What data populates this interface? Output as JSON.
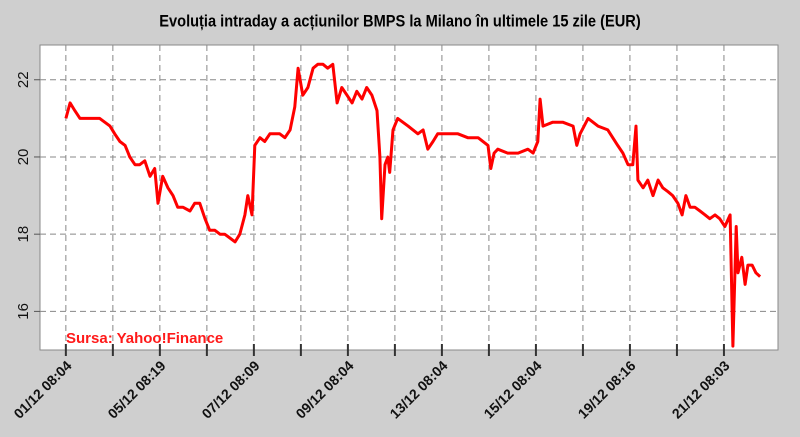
{
  "chart_data": {
    "type": "line",
    "title": "Evoluția intraday a acțiunilor BMPS la Milano în ultimele 15 zile (EUR)",
    "source": "Sursa: Yahoo!Finance",
    "categories": [
      "01/12 08:04",
      null,
      "05/12 08:19",
      null,
      "07/12 08:09",
      null,
      "09/12 08:04",
      null,
      "13/12 08:04",
      null,
      "15/12 08:04",
      null,
      "19/12 08:16",
      null,
      "21/12 08:03"
    ],
    "xlim": [
      -0.55,
      15.15
    ],
    "ylim": [
      15,
      22.9
    ],
    "yticks": [
      16,
      18,
      20,
      22
    ],
    "grid": true,
    "series": [
      {
        "name": "BMPS",
        "color": "#ff0000",
        "x": [
          0,
          0.09,
          0.19,
          0.3,
          0.51,
          0.72,
          0.94,
          1.04,
          1.15,
          1.26,
          1.36,
          1.47,
          1.57,
          1.68,
          1.79,
          1.89,
          1.96,
          2.06,
          2.17,
          2.28,
          2.38,
          2.49,
          2.64,
          2.74,
          2.85,
          2.96,
          3.06,
          3.17,
          3.28,
          3.38,
          3.49,
          3.6,
          3.7,
          3.81,
          3.87,
          3.96,
          4.02,
          4.13,
          4.23,
          4.34,
          4.55,
          4.66,
          4.77,
          4.87,
          4.94,
          5.04,
          5.15,
          5.26,
          5.36,
          5.47,
          5.57,
          5.68,
          5.77,
          5.87,
          5.98,
          6.09,
          6.19,
          6.3,
          6.4,
          6.51,
          6.62,
          6.68,
          6.72,
          6.79,
          6.85,
          6.89,
          6.96,
          7.06,
          7.28,
          7.49,
          7.6,
          7.7,
          7.81,
          7.91,
          8.13,
          8.34,
          8.55,
          8.77,
          8.98,
          9.04,
          9.11,
          9.19,
          9.4,
          9.62,
          9.83,
          9.94,
          10.04,
          10.09,
          10.15,
          10.36,
          10.57,
          10.79,
          10.87,
          10.94,
          11.11,
          11.32,
          11.53,
          11.74,
          11.85,
          11.96,
          12.06,
          12.13,
          12.17,
          12.28,
          12.38,
          12.49,
          12.6,
          12.7,
          12.81,
          12.91,
          13.02,
          13.11,
          13.19,
          13.28,
          13.38,
          13.49,
          13.6,
          13.7,
          13.81,
          13.91,
          14.02,
          14.13,
          14.19,
          14.26,
          14.3,
          14.38,
          14.45,
          14.51,
          14.6,
          14.68,
          14.77
        ],
        "values": [
          21.0,
          21.4,
          21.2,
          21.0,
          21.0,
          21.0,
          20.8,
          20.6,
          20.4,
          20.3,
          20.0,
          19.8,
          19.8,
          19.9,
          19.5,
          19.7,
          18.8,
          19.5,
          19.2,
          19.0,
          18.7,
          18.7,
          18.6,
          18.8,
          18.8,
          18.4,
          18.1,
          18.1,
          18.0,
          18.0,
          17.9,
          17.8,
          18.0,
          18.5,
          19.0,
          18.5,
          20.3,
          20.5,
          20.4,
          20.6,
          20.6,
          20.5,
          20.7,
          21.3,
          22.3,
          21.6,
          21.8,
          22.3,
          22.4,
          22.4,
          22.3,
          22.4,
          21.4,
          21.8,
          21.6,
          21.4,
          21.7,
          21.5,
          21.8,
          21.6,
          21.2,
          20.0,
          18.4,
          19.8,
          20.0,
          19.6,
          20.7,
          21.0,
          20.8,
          20.6,
          20.7,
          20.2,
          20.4,
          20.6,
          20.6,
          20.6,
          20.5,
          20.5,
          20.3,
          19.7,
          20.1,
          20.2,
          20.1,
          20.1,
          20.2,
          20.1,
          20.4,
          21.5,
          20.8,
          20.9,
          20.9,
          20.8,
          20.3,
          20.6,
          21.0,
          20.8,
          20.7,
          20.3,
          20.1,
          19.8,
          19.8,
          20.8,
          19.4,
          19.2,
          19.4,
          19.0,
          19.4,
          19.2,
          19.1,
          19.0,
          18.8,
          18.5,
          19.0,
          18.7,
          18.7,
          18.6,
          18.5,
          18.4,
          18.5,
          18.4,
          18.2,
          18.5,
          15.1,
          18.2,
          17.0,
          17.4,
          16.7,
          17.2,
          17.2,
          17.0,
          16.9
        ]
      }
    ]
  }
}
